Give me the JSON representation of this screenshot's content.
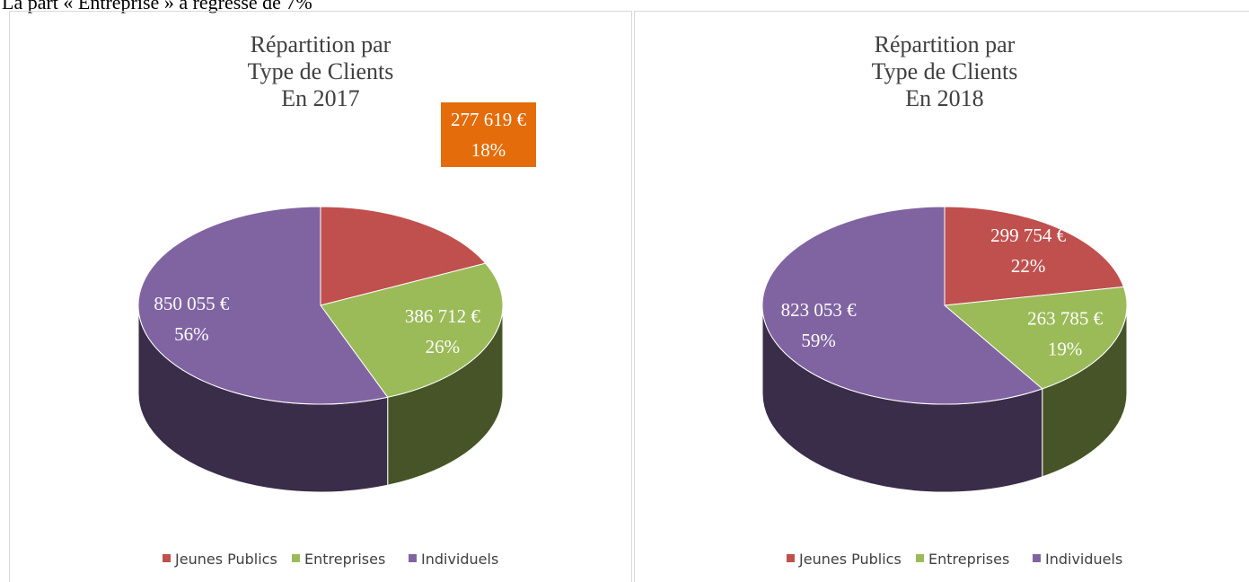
{
  "header": "La part « Entreprise » a régressé de 7%",
  "chart_data": [
    {
      "type": "pie3d",
      "title": [
        "Répartition par",
        "Type de Clients",
        "En 2017"
      ],
      "categories": [
        "Jeunes Publics",
        "Entreprises",
        "Individuels"
      ],
      "colors": [
        "#c0504d",
        "#9bbb59",
        "#8064a2"
      ],
      "values": [
        18,
        26,
        56
      ],
      "value_labels": [
        "18%",
        "26%",
        "56%"
      ],
      "amounts": [
        277619,
        386712,
        850055
      ],
      "amount_labels": [
        "277 619 €",
        "386 712 €",
        "850 055 €"
      ],
      "callout_color": "#e46c0a"
    },
    {
      "type": "pie3d",
      "title": [
        "Répartition par",
        "Type de Clients",
        "En 2018"
      ],
      "categories": [
        "Jeunes Publics",
        "Entreprises",
        "Individuels"
      ],
      "colors": [
        "#c0504d",
        "#9bbb59",
        "#8064a2"
      ],
      "values": [
        22,
        19,
        59
      ],
      "value_labels": [
        "22%",
        "19%",
        "59%"
      ],
      "amounts": [
        299754,
        263785,
        823053
      ],
      "amount_labels": [
        "299 754 €",
        "263 785 €",
        "823 053 €"
      ]
    }
  ]
}
